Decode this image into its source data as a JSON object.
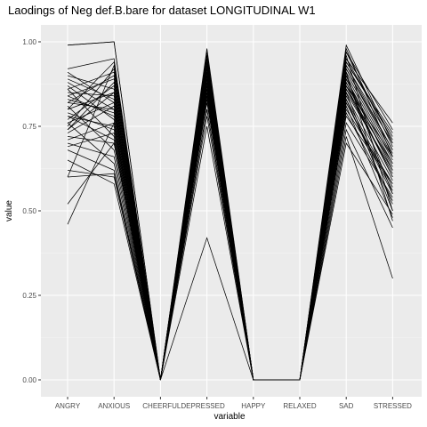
{
  "chart_data": {
    "type": "line",
    "title": "Laodings of Neg def.B.bare for dataset LONGITUDINAL W1",
    "xlabel": "variable",
    "ylabel": "value",
    "categories": [
      "ANGRY",
      "ANXIOUS",
      "CHEERFUL",
      "DEPRESSED",
      "HAPPY",
      "RELAXED",
      "SAD",
      "STRESSED"
    ],
    "category_tick_labels": [
      "ANGRY",
      "ANXIOUS",
      "CHEERFULDEPRESSED",
      "",
      "HAPPY",
      "RELAXED",
      "SAD",
      "STRESSED"
    ],
    "y_ticks": [
      0.0,
      0.25,
      0.5,
      0.75,
      1.0
    ],
    "y_tick_labels": [
      "0.00",
      "0.25",
      "0.50",
      "0.75",
      "1.00"
    ],
    "ylim": [
      -0.05,
      1.05
    ],
    "grid": true,
    "line_color": "#000000",
    "panel_color": "#ebebeb",
    "series": [
      {
        "values": [
          0.99,
          1.0,
          0.0,
          0.98,
          0.0,
          0.0,
          0.99,
          0.7
        ]
      },
      {
        "values": [
          0.99,
          1.0,
          0.0,
          0.97,
          0.0,
          0.0,
          0.98,
          0.66
        ]
      },
      {
        "values": [
          0.46,
          0.76,
          0.0,
          0.8,
          0.0,
          0.0,
          0.95,
          0.76
        ]
      },
      {
        "values": [
          0.6,
          0.93,
          0.0,
          0.42,
          0.0,
          0.0,
          0.72,
          0.3
        ]
      },
      {
        "values": [
          0.62,
          0.6,
          0.0,
          0.75,
          0.0,
          0.0,
          0.78,
          0.58
        ]
      },
      {
        "values": [
          0.65,
          0.58,
          0.0,
          0.82,
          0.0,
          0.0,
          0.96,
          0.5
        ]
      },
      {
        "values": [
          0.72,
          0.7,
          0.0,
          0.84,
          0.0,
          0.0,
          0.9,
          0.55
        ]
      },
      {
        "values": [
          0.74,
          0.88,
          0.0,
          0.88,
          0.0,
          0.0,
          0.85,
          0.62
        ]
      },
      {
        "values": [
          0.76,
          0.82,
          0.0,
          0.9,
          0.0,
          0.0,
          0.92,
          0.68
        ]
      },
      {
        "values": [
          0.78,
          0.75,
          0.0,
          0.86,
          0.0,
          0.0,
          0.88,
          0.6
        ]
      },
      {
        "values": [
          0.8,
          0.85,
          0.0,
          0.93,
          0.0,
          0.0,
          0.94,
          0.72
        ]
      },
      {
        "values": [
          0.82,
          0.9,
          0.0,
          0.91,
          0.0,
          0.0,
          0.86,
          0.64
        ]
      },
      {
        "values": [
          0.84,
          0.78,
          0.0,
          0.95,
          0.0,
          0.0,
          0.83,
          0.52
        ]
      },
      {
        "values": [
          0.86,
          0.72,
          0.0,
          0.87,
          0.0,
          0.0,
          0.91,
          0.47
        ]
      },
      {
        "values": [
          0.88,
          0.8,
          0.0,
          0.89,
          0.0,
          0.0,
          0.97,
          0.74
        ]
      },
      {
        "values": [
          0.9,
          0.86,
          0.0,
          0.94,
          0.0,
          0.0,
          0.82,
          0.56
        ]
      },
      {
        "values": [
          0.92,
          0.95,
          0.0,
          0.96,
          0.0,
          0.0,
          0.87,
          0.66
        ]
      },
      {
        "values": [
          0.7,
          0.66,
          0.0,
          0.85,
          0.0,
          0.0,
          0.8,
          0.58
        ]
      },
      {
        "values": [
          0.68,
          0.62,
          0.0,
          0.83,
          0.0,
          0.0,
          0.76,
          0.54
        ]
      },
      {
        "values": [
          0.75,
          0.92,
          0.0,
          0.92,
          0.0,
          0.0,
          0.93,
          0.7
        ]
      },
      {
        "values": [
          0.79,
          0.74,
          0.0,
          0.9,
          0.0,
          0.0,
          0.89,
          0.62
        ]
      },
      {
        "values": [
          0.81,
          0.68,
          0.0,
          0.88,
          0.0,
          0.0,
          0.84,
          0.59
        ]
      },
      {
        "values": [
          0.83,
          0.79,
          0.0,
          0.93,
          0.0,
          0.0,
          0.9,
          0.65
        ]
      },
      {
        "values": [
          0.85,
          0.84,
          0.0,
          0.91,
          0.0,
          0.0,
          0.95,
          0.71
        ]
      },
      {
        "values": [
          0.87,
          0.77,
          0.0,
          0.86,
          0.0,
          0.0,
          0.81,
          0.48
        ]
      },
      {
        "values": [
          0.73,
          0.81,
          0.0,
          0.94,
          0.0,
          0.0,
          0.92,
          0.67
        ]
      },
      {
        "values": [
          0.77,
          0.87,
          0.0,
          0.89,
          0.0,
          0.0,
          0.86,
          0.61
        ]
      },
      {
        "values": [
          0.89,
          0.83,
          0.0,
          0.92,
          0.0,
          0.0,
          0.88,
          0.63
        ]
      },
      {
        "values": [
          0.71,
          0.76,
          0.0,
          0.87,
          0.0,
          0.0,
          0.79,
          0.53
        ]
      },
      {
        "values": [
          0.8,
          0.94,
          0.0,
          0.96,
          0.0,
          0.0,
          0.94,
          0.73
        ]
      },
      {
        "values": [
          0.76,
          0.64,
          0.0,
          0.84,
          0.0,
          0.0,
          0.83,
          0.57
        ]
      },
      {
        "values": [
          0.84,
          0.89,
          0.0,
          0.95,
          0.0,
          0.0,
          0.97,
          0.69
        ]
      },
      {
        "values": [
          0.78,
          0.71,
          0.0,
          0.88,
          0.0,
          0.0,
          0.85,
          0.5
        ]
      },
      {
        "values": [
          0.82,
          0.8,
          0.0,
          0.9,
          0.0,
          0.0,
          0.89,
          0.64
        ]
      },
      {
        "values": [
          0.74,
          0.85,
          0.0,
          0.91,
          0.0,
          0.0,
          0.91,
          0.66
        ]
      },
      {
        "values": [
          0.86,
          0.91,
          0.0,
          0.93,
          0.0,
          0.0,
          0.87,
          0.6
        ]
      },
      {
        "values": [
          0.69,
          0.73,
          0.0,
          0.85,
          0.0,
          0.0,
          0.82,
          0.55
        ]
      },
      {
        "values": [
          0.91,
          0.82,
          0.0,
          0.94,
          0.0,
          0.0,
          0.93,
          0.68
        ]
      },
      {
        "values": [
          0.6,
          0.61,
          0.0,
          0.78,
          0.0,
          0.0,
          0.74,
          0.45
        ]
      },
      {
        "values": [
          0.52,
          0.7,
          0.0,
          0.8,
          0.0,
          0.0,
          0.7,
          0.49
        ]
      }
    ]
  }
}
